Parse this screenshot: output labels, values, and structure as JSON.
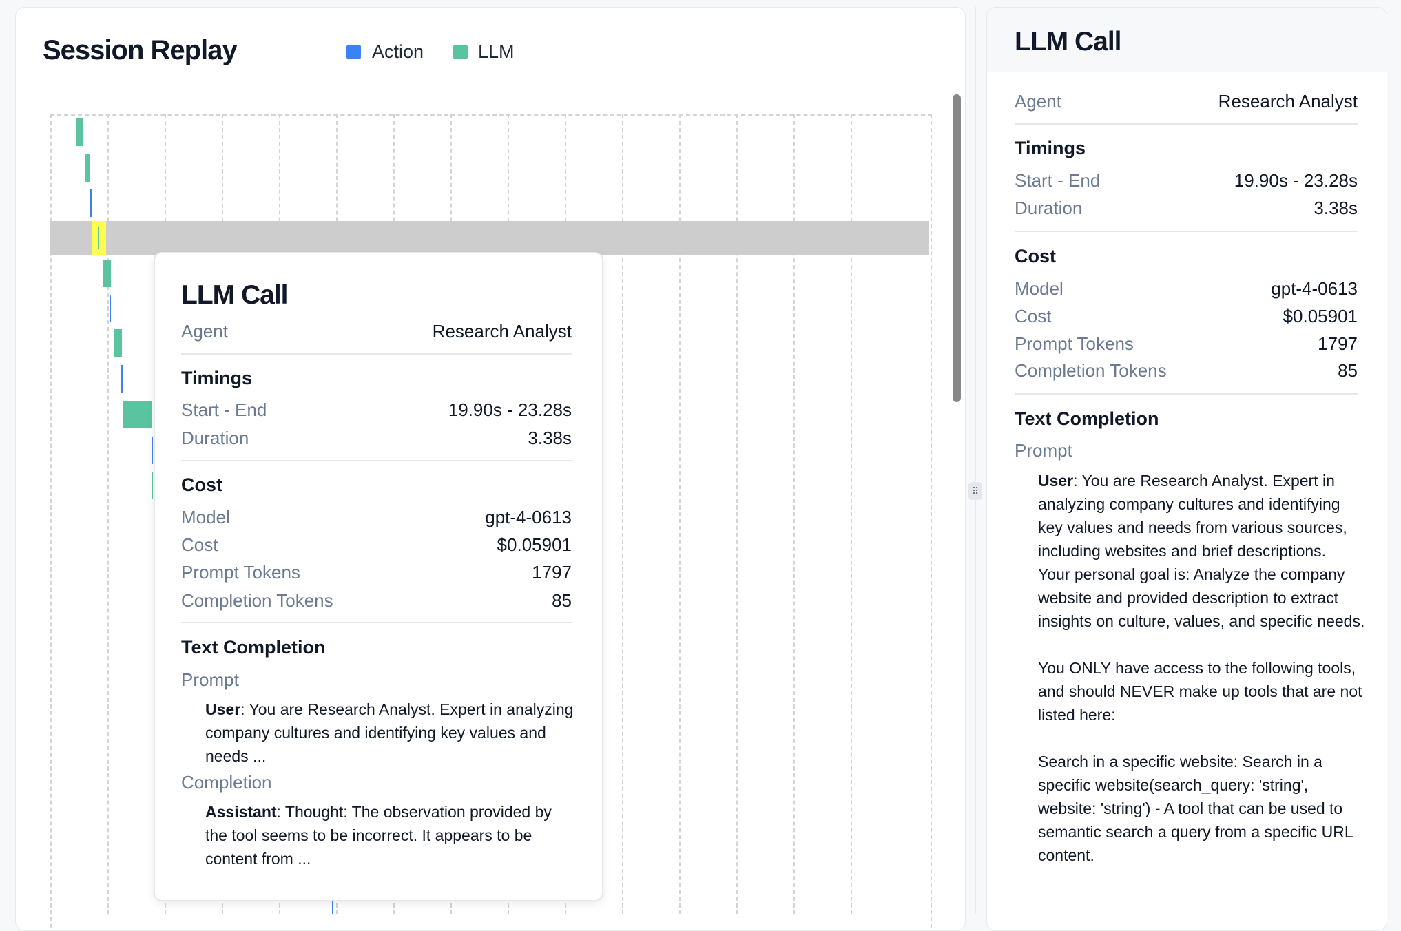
{
  "replay": {
    "title": "Session Replay",
    "legend": [
      {
        "label": "Action",
        "color": "#3b82f6"
      },
      {
        "label": "LLM",
        "color": "#5ac4a0"
      }
    ],
    "highlight_color": "#ffff4d"
  },
  "detail": {
    "title": "LLM Call",
    "agent_label": "Agent",
    "agent_value": "Research Analyst",
    "timings": {
      "heading": "Timings",
      "start_end_label": "Start - End",
      "start_end_value": "19.90s - 23.28s",
      "duration_label": "Duration",
      "duration_value": "3.38s"
    },
    "cost": {
      "heading": "Cost",
      "model_label": "Model",
      "model_value": "gpt-4-0613",
      "cost_label": "Cost",
      "cost_value": "$0.05901",
      "prompt_tokens_label": "Prompt Tokens",
      "prompt_tokens_value": "1797",
      "completion_tokens_label": "Completion Tokens",
      "completion_tokens_value": "85"
    },
    "text_completion": {
      "heading": "Text Completion",
      "prompt_label": "Prompt",
      "completion_label": "Completion",
      "user_role": "User",
      "assistant_role": "Assistant",
      "prompt_preview": ": You are Research Analyst. Expert in analyzing company cultures and identifying key values and needs ...",
      "completion_preview": ": Thought: The observation provided by the tool seems to be incorrect. It appears to be content from ...",
      "prompt_full": ": You are Research Analyst. Expert in analyzing company cultures and identifying key values and needs from various sources, including websites and brief descriptions.\nYour personal goal is: Analyze the company website and provided description to extract insights on culture, values, and specific needs.\n\nYou ONLY have access to the following tools, and should NEVER make up tools that are not listed here:\n\nSearch in a specific website: Search in a specific website(search_query: 'string', website: 'string') - A tool that can be used to semantic search a query from a specific URL content."
    }
  }
}
